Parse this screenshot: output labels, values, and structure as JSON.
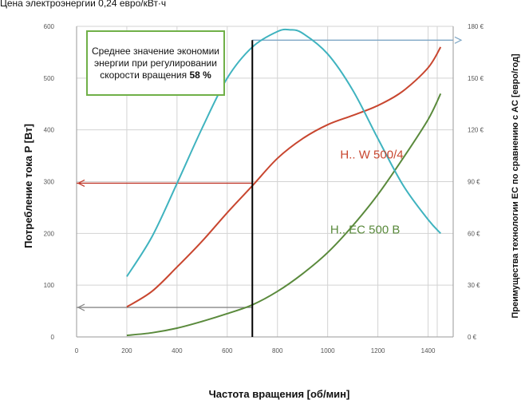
{
  "chart_data": {
    "type": "line",
    "top_note": "Цена электроэнергии 0,24 евро/кВт·ч",
    "xlabel": "Частота вращения [об/мин]",
    "ylabel": "Потребление тока P [Вт]",
    "y2label": "Преимущества технологии EC по сравнению с AC [евро/год]",
    "xlim": [
      0,
      1500
    ],
    "ylim": [
      0,
      600
    ],
    "y2lim": [
      0,
      180
    ],
    "x_ticks": [
      "0",
      "200",
      "400",
      "600",
      "800",
      "1000",
      "1200",
      "1400"
    ],
    "y_ticks": [
      "0",
      "100",
      "200",
      "300",
      "400",
      "500",
      "600"
    ],
    "y2_ticks": [
      "0 €",
      "30 €",
      "60 €",
      "90 €",
      "120 €",
      "150 €",
      "180 €"
    ],
    "grid": true,
    "annotation": {
      "text": "Среднее значение экономии энергии при регулировании скорости вращения",
      "value": "58 %"
    },
    "marker_x": 700,
    "reference_levels": [
      {
        "axis": "y",
        "value": 297,
        "color": "#c0392b"
      },
      {
        "axis": "y",
        "value": 57,
        "color": "#888888"
      },
      {
        "axis": "y2",
        "value": 172,
        "color": "#7fa7c6"
      }
    ],
    "series": [
      {
        "name": "H.. W 500/4",
        "axis": "y",
        "color": "#c8462f",
        "x": [
          200,
          300,
          400,
          500,
          600,
          700,
          800,
          900,
          1000,
          1100,
          1200,
          1300,
          1400,
          1450
        ],
        "y": [
          58,
          88,
          135,
          185,
          240,
          292,
          345,
          383,
          410,
          428,
          447,
          475,
          520,
          560
        ]
      },
      {
        "name": "H.. EC 500 B",
        "axis": "y",
        "color": "#5a8a3c",
        "x": [
          200,
          300,
          400,
          500,
          600,
          700,
          800,
          900,
          1000,
          1100,
          1200,
          1300,
          1400,
          1450
        ],
        "y": [
          3,
          8,
          17,
          30,
          45,
          62,
          88,
          122,
          163,
          215,
          275,
          345,
          420,
          470
        ]
      },
      {
        "name": "",
        "axis": "y2",
        "color": "#3fb3bf",
        "x": [
          200,
          300,
          400,
          500,
          600,
          700,
          800,
          850,
          900,
          1000,
          1100,
          1200,
          1300,
          1400,
          1450
        ],
        "y": [
          35,
          58,
          89,
          121,
          150,
          168,
          177,
          178,
          176,
          164,
          143,
          115,
          88,
          68,
          60
        ]
      }
    ]
  },
  "colors": {
    "grid": "#d3d3d3",
    "axis": "#9a9a9a",
    "box_border": "#70b048"
  }
}
